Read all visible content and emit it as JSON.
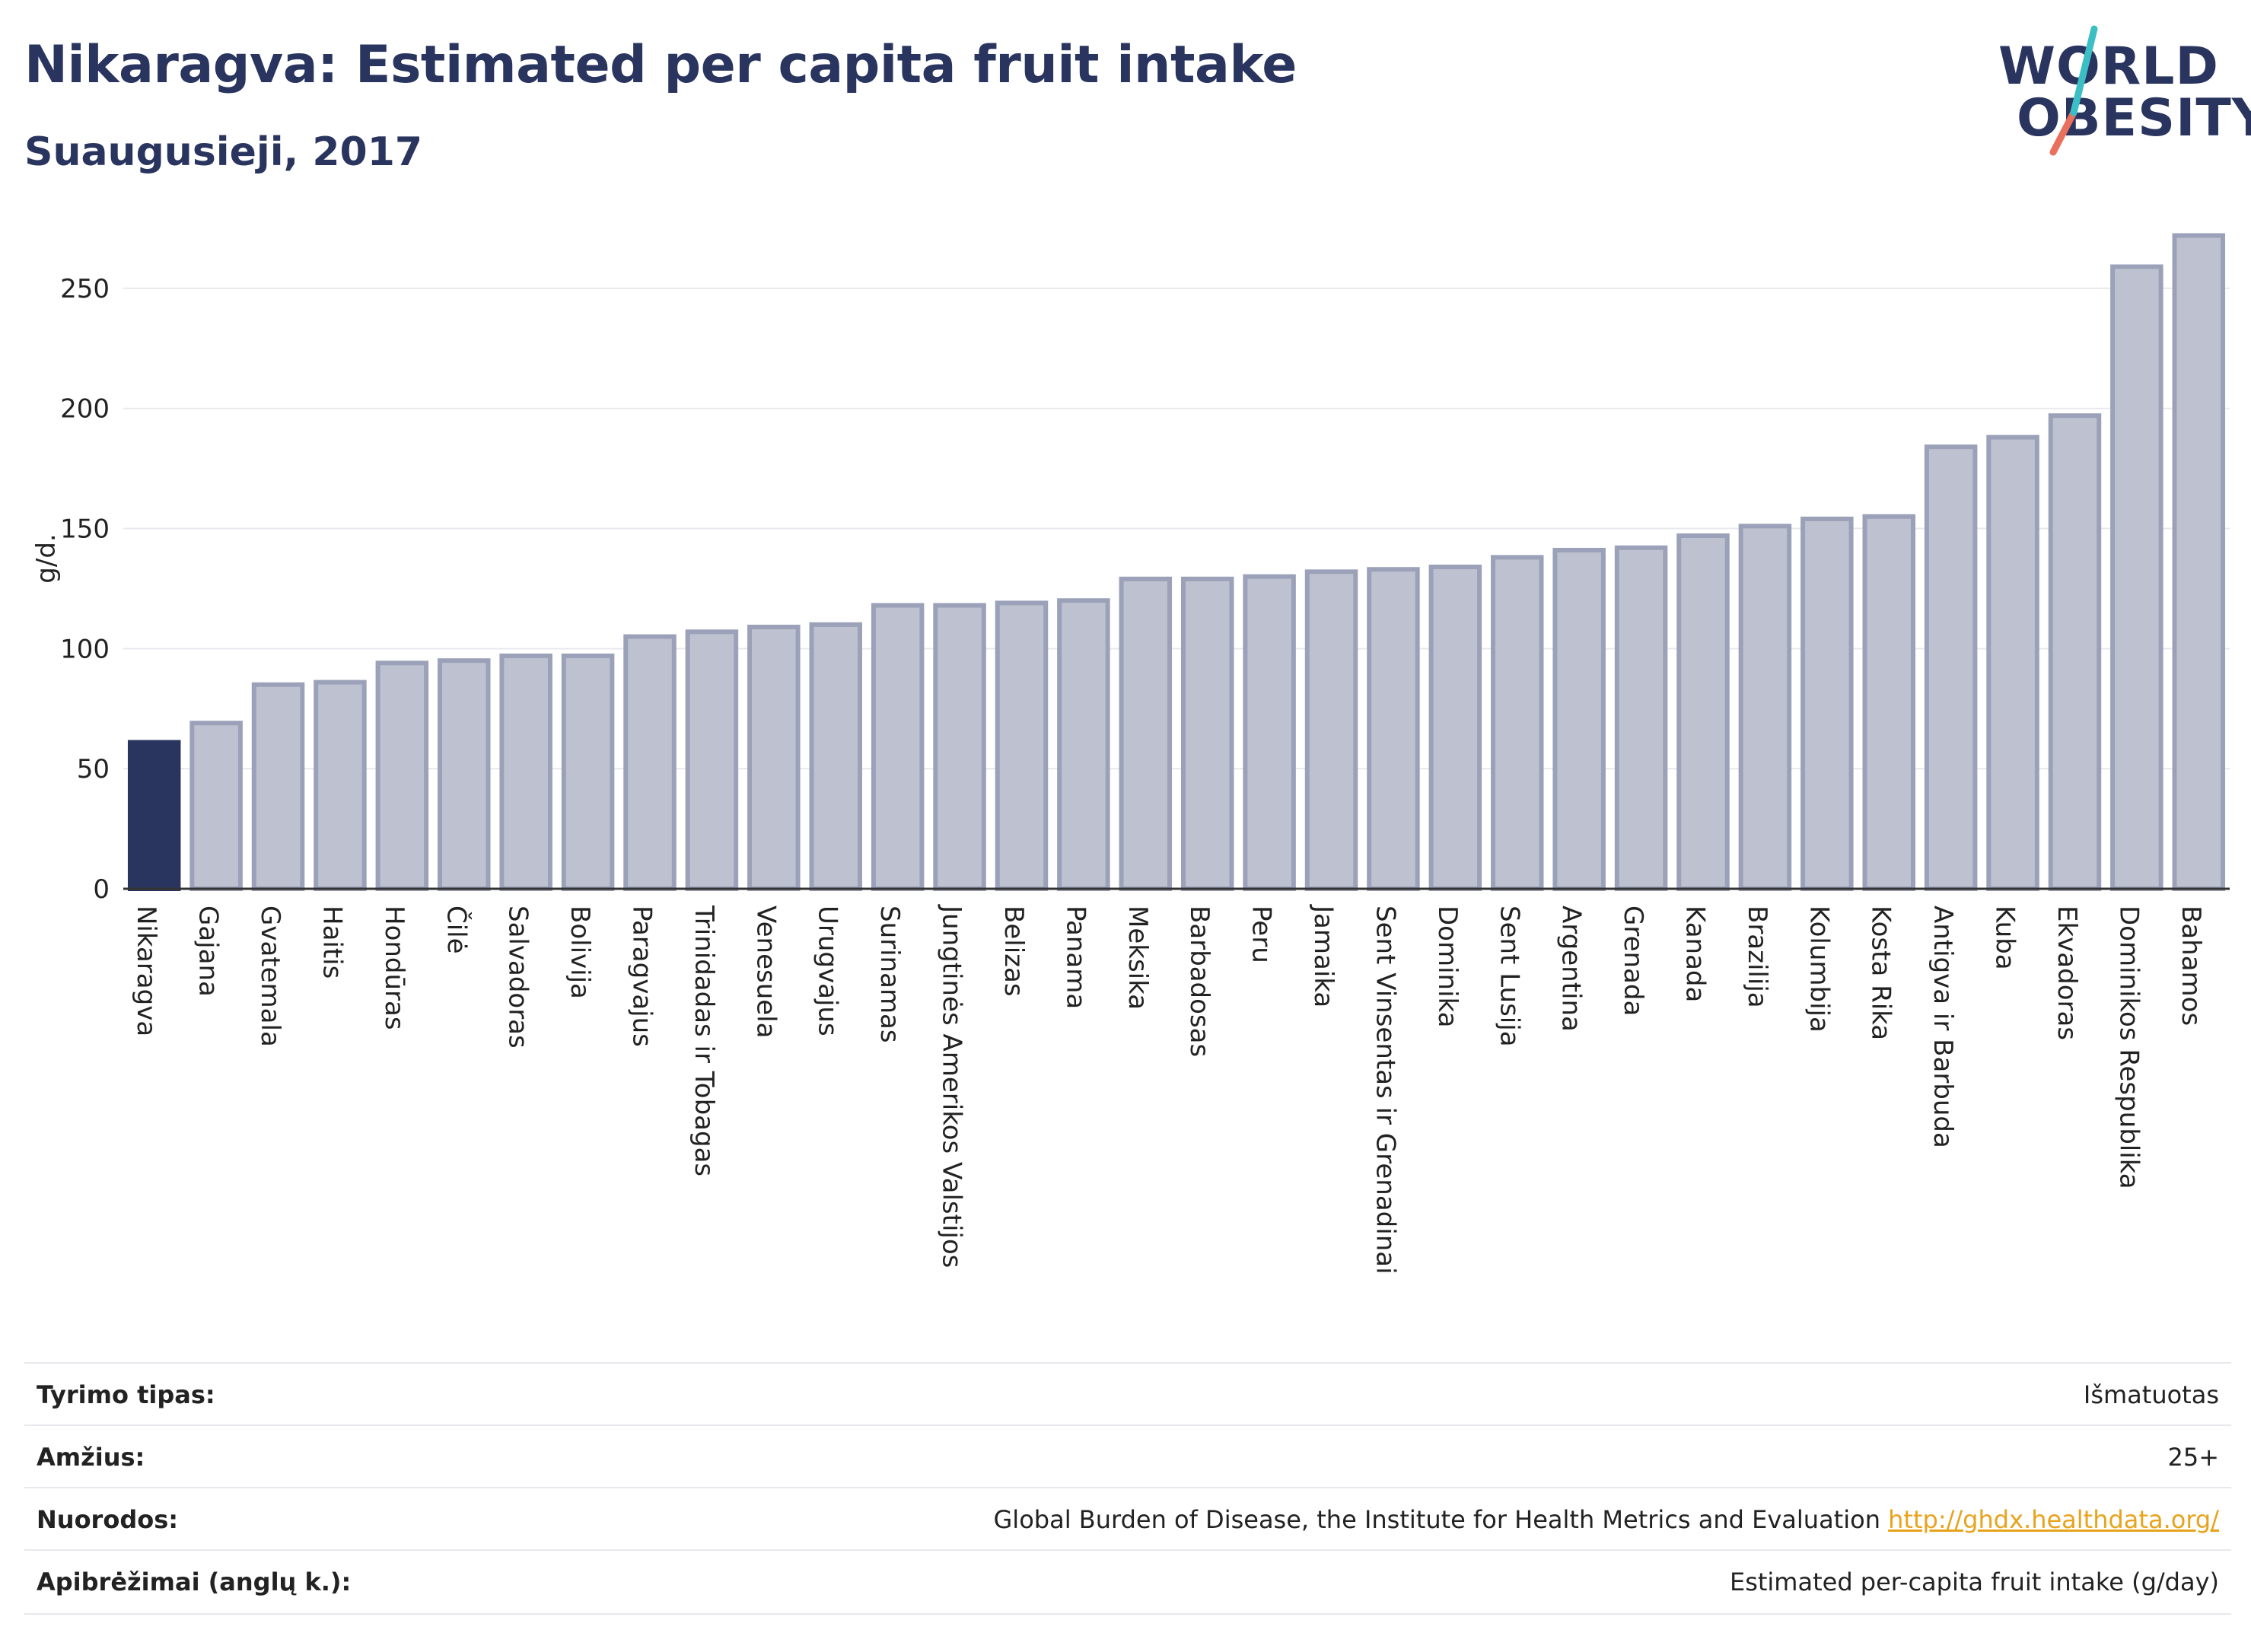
{
  "title": "Nikaragva: Estimated per capita fruit intake",
  "subtitle": "Suaugusieji, 2017",
  "logo": {
    "line1": "WORLD",
    "line2": "OBESITY"
  },
  "colors": {
    "highlight": "#2a355f",
    "bar_fill": "#bec2d0",
    "bar_stroke": "#9ba1b8",
    "grid": "#e8e9ee",
    "logo_teal": "#3bbfc4",
    "logo_coral": "#e8705d",
    "link": "#e8a31c"
  },
  "chart_data": {
    "type": "bar",
    "ylabel": "g/d.",
    "ylim": [
      0,
      275
    ],
    "yticks": [
      0,
      50,
      100,
      150,
      200,
      250
    ],
    "grid": true,
    "highlight_category": "Nikaragva",
    "categories": [
      "Nikaragva",
      "Gajana",
      "Gvatemala",
      "Haitis",
      "Hondūras",
      "Čilė",
      "Salvadoras",
      "Bolivija",
      "Paragvajus",
      "Trinidadas ir Tobagas",
      "Venesuela",
      "Urugvajus",
      "Surinamas",
      "Jungtinės Amerikos Valstijos",
      "Belizas",
      "Panama",
      "Meksika",
      "Barbadosas",
      "Peru",
      "Jamaika",
      "Sent Vinsentas ir Grenadinai",
      "Dominika",
      "Sent Lusija",
      "Argentina",
      "Grenada",
      "Kanada",
      "Brazilija",
      "Kolumbija",
      "Kosta Rika",
      "Antigva ir Barbuda",
      "Kuba",
      "Ekvadoras",
      "Dominikos Respublika",
      "Bahamos"
    ],
    "values": [
      61,
      69,
      85,
      86,
      94,
      95,
      97,
      97,
      105,
      107,
      109,
      110,
      118,
      118,
      119,
      120,
      129,
      129,
      130,
      132,
      133,
      134,
      138,
      141,
      142,
      147,
      151,
      154,
      155,
      184,
      188,
      197,
      259,
      272
    ]
  },
  "meta": [
    {
      "label": "Tyrimo tipas:",
      "value": "Išmatuotas",
      "link": ""
    },
    {
      "label": "Amžius:",
      "value": "25+",
      "link": ""
    },
    {
      "label": "Nuorodos:",
      "value": "Global Burden of Disease, the Institute for Health Metrics and Evaluation ",
      "link": "http://ghdx.healthdata.org/"
    },
    {
      "label": "Apibrėžimai (anglų k.):",
      "value": "Estimated per-capita fruit intake (g/day)",
      "link": ""
    }
  ]
}
